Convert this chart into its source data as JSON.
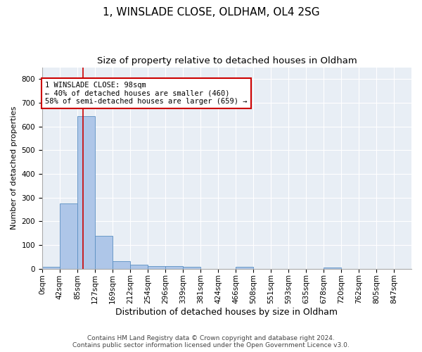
{
  "title1": "1, WINSLADE CLOSE, OLDHAM, OL4 2SG",
  "title2": "Size of property relative to detached houses in Oldham",
  "xlabel": "Distribution of detached houses by size in Oldham",
  "ylabel": "Number of detached properties",
  "footer1": "Contains HM Land Registry data © Crown copyright and database right 2024.",
  "footer2": "Contains public sector information licensed under the Open Government Licence v3.0.",
  "bin_labels": [
    "0sqm",
    "42sqm",
    "85sqm",
    "127sqm",
    "169sqm",
    "212sqm",
    "254sqm",
    "296sqm",
    "339sqm",
    "381sqm",
    "424sqm",
    "466sqm",
    "508sqm",
    "551sqm",
    "593sqm",
    "635sqm",
    "678sqm",
    "720sqm",
    "762sqm",
    "805sqm",
    "847sqm"
  ],
  "bar_values": [
    7,
    275,
    645,
    140,
    33,
    17,
    12,
    10,
    9,
    0,
    0,
    7,
    0,
    0,
    0,
    0,
    6,
    0,
    0,
    0,
    0
  ],
  "bar_color": "#aec6e8",
  "bar_edge_color": "#5a8fc2",
  "property_line_x": 2.31,
  "property_line_color": "#cc0000",
  "annotation_text": "1 WINSLADE CLOSE: 98sqm\n← 40% of detached houses are smaller (460)\n58% of semi-detached houses are larger (659) →",
  "annotation_box_color": "#ffffff",
  "annotation_box_edge": "#cc0000",
  "ylim": [
    0,
    850
  ],
  "yticks": [
    0,
    100,
    200,
    300,
    400,
    500,
    600,
    700,
    800
  ],
  "background_color": "#e8eef5",
  "grid_color": "#ffffff",
  "title1_fontsize": 11,
  "title2_fontsize": 9.5,
  "xlabel_fontsize": 9,
  "ylabel_fontsize": 8,
  "tick_fontsize": 7.5,
  "footer_fontsize": 6.5,
  "fig_width": 6.0,
  "fig_height": 5.0,
  "dpi": 100
}
